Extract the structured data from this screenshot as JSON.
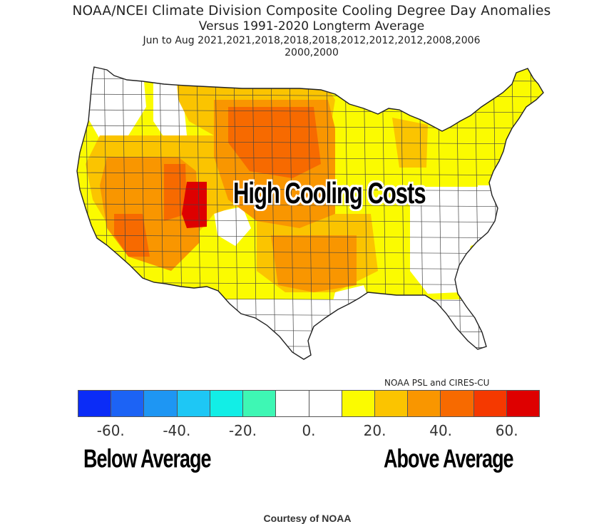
{
  "title": {
    "line1": "NOAA/NCEI Climate Division Composite Cooling Degree Day Anomalies",
    "line2": "Versus 1991-2020 Longterm Average",
    "line3": "Jun to Aug   2021,2021,2018,2018,2018,2012,2012,2012,2008,2006",
    "line4": "2000,2000"
  },
  "overlay": {
    "center_label": "High Cooling Costs",
    "below_label": "Below Average",
    "above_label": "Above Average"
  },
  "credits": {
    "psl": "NOAA PSL and CIRES-CU",
    "courtesy": "Courtesy of NOAA"
  },
  "legend": {
    "colors": [
      "#0b2cf7",
      "#1c63f5",
      "#1e96f3",
      "#1ec7f5",
      "#12eee6",
      "#3ef7b4",
      "#ffffff",
      "#ffffff",
      "#fbfb00",
      "#fbc400",
      "#f99600",
      "#f76a00",
      "#f53900",
      "#de0000"
    ],
    "tick_labels": [
      "-60.",
      "-40.",
      "-20.",
      "0.",
      "20.",
      "40.",
      "60."
    ]
  },
  "map_colors": {
    "white": "#ffffff",
    "yellow": "#fbfb00",
    "gold": "#fbc400",
    "orange": "#f99600",
    "dark_orange": "#f76a00",
    "red_orange": "#f53900",
    "red": "#de0000"
  }
}
